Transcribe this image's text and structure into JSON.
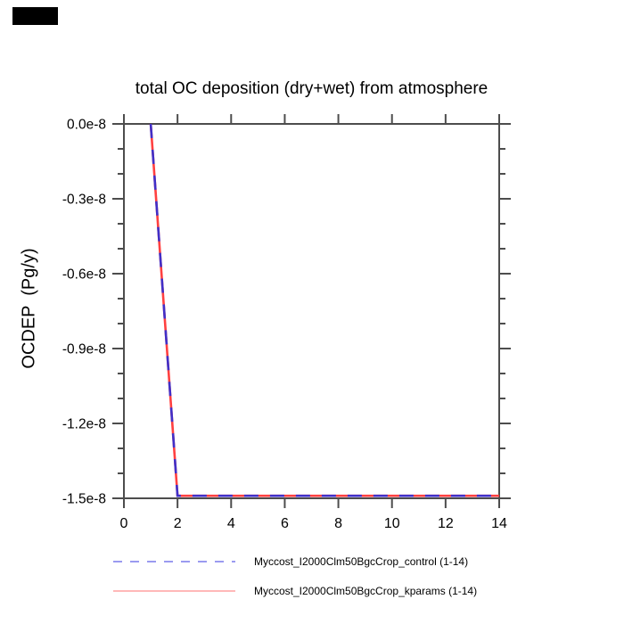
{
  "artifact": {
    "color": "#000000"
  },
  "chart_data": {
    "type": "line",
    "title": "total OC deposition (dry+wet) from atmosphere",
    "xlabel": "",
    "ylabel": "OCDEP  (Pg/y)",
    "grid": false,
    "legend_position": "below-chart",
    "axis_color": "#4d4d4d",
    "xlim": [
      0,
      14
    ],
    "ylim_e8": [
      -1.5,
      0
    ],
    "x_ticks": {
      "values": [
        0,
        2,
        4,
        6,
        8,
        10,
        12,
        14
      ],
      "labels": [
        "0",
        "2",
        "4",
        "6",
        "8",
        "10",
        "12",
        "14"
      ]
    },
    "y_ticks": {
      "values_e8": [
        0,
        -0.3,
        -0.6,
        -0.9,
        -1.2,
        -1.5
      ],
      "labels": [
        "0.0e-8",
        "-0.3e-8",
        "-0.6e-8",
        "-0.9e-8",
        "-1.2e-8",
        "-1.5e-8"
      ],
      "minor_step_e8": 0.1
    },
    "x": [
      1,
      2,
      3,
      4,
      5,
      6,
      7,
      8,
      9,
      10,
      11,
      12,
      13,
      14
    ],
    "series": [
      {
        "name": "Myccost_I2000Clm50BgcCrop_control (1-14)",
        "style": "dashed",
        "color": "#4030c8",
        "legend_color": "#8c8cee",
        "values_e8": [
          0,
          -1.49,
          -1.49,
          -1.49,
          -1.49,
          -1.49,
          -1.49,
          -1.49,
          -1.49,
          -1.49,
          -1.49,
          -1.49,
          -1.49,
          -1.49
        ]
      },
      {
        "name": "Myccost_I2000Clm50BgcCrop_kparams (1-14)",
        "style": "solid",
        "color": "#ff4040",
        "legend_color": "#ffa0a0",
        "values_e8": [
          0,
          -1.49,
          -1.49,
          -1.49,
          -1.49,
          -1.49,
          -1.49,
          -1.49,
          -1.49,
          -1.49,
          -1.49,
          -1.49,
          -1.49,
          -1.49
        ]
      }
    ]
  }
}
